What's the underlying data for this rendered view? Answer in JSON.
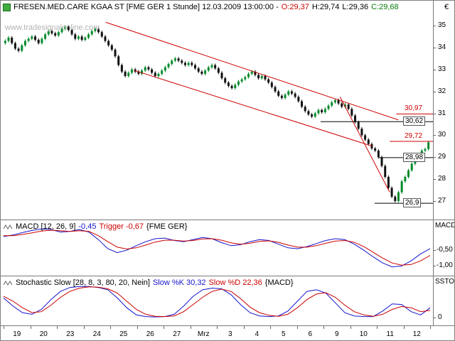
{
  "header": {
    "title_prefix": "FRESEN.MED.CARE KGAA ST [FME GER  1 Stunde] 12.03.2009 13:00:00 -",
    "open": "O:29,37",
    "high": "H:29,74",
    "low": "L:29,36",
    "close": "C:29,68"
  },
  "watermark": "www.tradesignalonline.com",
  "macd_header": {
    "name": "MACD [12, 26, 9]",
    "value": "-0,45",
    "trigger": "Trigger -0,67",
    "scope": "{FME GER}"
  },
  "ssto_header": {
    "name": "Stochastic Slow [28, 8, 3, 80, 20, Nein]",
    "k": "Slow %K 30,32",
    "d": "Slow %D 22,36",
    "scope": "{MACD}"
  },
  "axes": {
    "price": {
      "title": "€",
      "ticks": [
        "35",
        "34",
        "33",
        "32",
        "31",
        "30",
        "29",
        "28",
        "27"
      ],
      "tick_values": [
        35,
        34,
        33,
        32,
        31,
        30,
        29,
        28,
        27
      ]
    },
    "macd": {
      "title": "MACD",
      "ticks": [
        "-0,50",
        "-1,00"
      ],
      "tick_values": [
        -0.5,
        -1.0
      ]
    },
    "ssto": {
      "title": "SSTO",
      "ticks": [
        "0"
      ],
      "tick_values": [
        0
      ]
    }
  },
  "chart_data": [
    {
      "type": "candlestick",
      "symbol": "FRESEN.MED.CARE KGAA ST",
      "feed": "FME GER",
      "interval": "1 Stunde",
      "last_update": "12.03.2009 13:00:00",
      "last_bar": {
        "open": 29.37,
        "high": 29.74,
        "low": 29.36,
        "close": 29.68
      },
      "ylim": [
        26.4,
        35.3
      ],
      "yticks": [
        35,
        34,
        33,
        32,
        31,
        30,
        29,
        28,
        27
      ],
      "x_labels": [
        "19",
        "20",
        "23",
        "24",
        "25",
        "26",
        "27",
        "Mrz",
        "3",
        "4",
        "5",
        "6",
        "9",
        "10",
        "11",
        "12"
      ],
      "bars_per_label": 8,
      "first_open": 34.2,
      "wick_pad": 0.07,
      "up_color": "#068a2c",
      "down_color": "#111111",
      "trend_color": "#cc0000",
      "closes": [
        34.3,
        34.45,
        34.2,
        33.95,
        33.85,
        34.1,
        34.3,
        34.4,
        34.5,
        34.35,
        34.2,
        34.4,
        34.6,
        34.75,
        34.65,
        34.55,
        34.7,
        34.85,
        34.95,
        34.8,
        34.6,
        34.4,
        34.5,
        34.35,
        34.45,
        34.6,
        34.75,
        34.85,
        34.7,
        34.5,
        34.3,
        34.1,
        33.9,
        33.6,
        33.2,
        32.9,
        32.7,
        32.85,
        33.0,
        32.9,
        32.8,
        32.95,
        33.1,
        33.0,
        32.85,
        32.7,
        32.8,
        32.95,
        33.1,
        33.25,
        33.4,
        33.5,
        33.4,
        33.3,
        33.2,
        33.3,
        33.2,
        33.05,
        32.9,
        32.8,
        32.95,
        33.1,
        33.2,
        33.05,
        32.85,
        32.6,
        32.4,
        32.25,
        32.15,
        32.3,
        32.45,
        32.55,
        32.65,
        32.8,
        32.9,
        32.75,
        32.6,
        32.7,
        32.55,
        32.4,
        32.2,
        32.0,
        31.8,
        31.7,
        31.85,
        32.0,
        31.9,
        31.75,
        31.55,
        31.3,
        31.1,
        30.95,
        30.85,
        31.0,
        31.15,
        31.05,
        31.2,
        31.35,
        31.5,
        31.6,
        31.45,
        31.3,
        31.4,
        31.2,
        30.9,
        30.6,
        30.3,
        30.0,
        29.8,
        29.6,
        29.4,
        29.3,
        29.0,
        28.6,
        28.1,
        27.6,
        27.2,
        27.0,
        27.4,
        27.9,
        28.1,
        28.4,
        28.7,
        28.98,
        29.1,
        29.3,
        29.37,
        29.68
      ],
      "trendlines": [
        {
          "x1": 0.243,
          "p1": 35.15,
          "x2": 0.92,
          "p2": 30.7
        },
        {
          "x1": 0.31,
          "p1": 32.95,
          "x2": 0.86,
          "p2": 29.5
        },
        {
          "x1": 0.785,
          "p1": 31.75,
          "x2": 0.9,
          "p2": 27.4
        }
      ],
      "levels": [
        {
          "price": 30.97,
          "label": "30,97",
          "color": "#cc0000",
          "from": 0.915,
          "boxed": false
        },
        {
          "price": 30.62,
          "label": "30,62",
          "color": "#000000",
          "from": 0.74,
          "boxed": true
        },
        {
          "price": 29.72,
          "label": "29,72",
          "color": "#cc0000",
          "from": 0.9,
          "boxed": false
        },
        {
          "price": 28.98,
          "label": "28,98",
          "color": "#000000",
          "from": 0.875,
          "boxed": true
        },
        {
          "price": 26.9,
          "label": "26,9",
          "color": "#000000",
          "from": 0.865,
          "boxed": true
        }
      ]
    },
    {
      "type": "line",
      "panel": "macd",
      "title": "MACD [12, 26, 9]",
      "ylim": [
        -1.15,
        0.3
      ],
      "yticks": [
        -0.5,
        -1.0
      ],
      "last": {
        "macd": -0.45,
        "trigger": -0.67
      },
      "series": [
        {
          "name": "MACD",
          "color": "#1414cc",
          "values": [
            -0.05,
            0.0,
            0.08,
            0.15,
            0.2,
            0.18,
            0.1,
            0.12,
            0.18,
            0.1,
            -0.15,
            -0.45,
            -0.58,
            -0.5,
            -0.35,
            -0.22,
            -0.12,
            -0.1,
            -0.18,
            -0.22,
            -0.15,
            -0.08,
            -0.12,
            -0.25,
            -0.35,
            -0.32,
            -0.22,
            -0.15,
            -0.18,
            -0.3,
            -0.42,
            -0.45,
            -0.38,
            -0.28,
            -0.18,
            -0.12,
            -0.15,
            -0.3,
            -0.5,
            -0.72,
            -0.92,
            -1.05,
            -1.02,
            -0.85,
            -0.62,
            -0.45
          ]
        },
        {
          "name": "Trigger",
          "color": "#cc0000",
          "values": [
            -0.02,
            -0.02,
            0.02,
            0.07,
            0.13,
            0.16,
            0.14,
            0.12,
            0.14,
            0.12,
            -0.02,
            -0.22,
            -0.4,
            -0.46,
            -0.42,
            -0.33,
            -0.23,
            -0.17,
            -0.17,
            -0.2,
            -0.18,
            -0.13,
            -0.12,
            -0.17,
            -0.26,
            -0.3,
            -0.27,
            -0.21,
            -0.19,
            -0.24,
            -0.33,
            -0.4,
            -0.4,
            -0.35,
            -0.27,
            -0.2,
            -0.18,
            -0.24,
            -0.38,
            -0.57,
            -0.76,
            -0.92,
            -0.99,
            -0.97,
            -0.85,
            -0.67
          ]
        }
      ]
    },
    {
      "type": "line",
      "panel": "stochastic",
      "title": "Stochastic Slow [28, 8, 3, 80, 20, Nein]",
      "ylim": [
        0,
        100
      ],
      "yticks": [
        0
      ],
      "last": {
        "slow_k": 30.32,
        "slow_d": 22.36
      },
      "series": [
        {
          "name": "Slow %K",
          "color": "#1414cc",
          "values": [
            60,
            35,
            15,
            10,
            25,
            55,
            80,
            92,
            95,
            95,
            92,
            85,
            60,
            30,
            8,
            3,
            2,
            3,
            10,
            35,
            65,
            85,
            90,
            88,
            70,
            40,
            15,
            5,
            3,
            5,
            20,
            50,
            80,
            85,
            75,
            45,
            15,
            5,
            3,
            3,
            20,
            42,
            40,
            18,
            8,
            30
          ]
        },
        {
          "name": "Slow %D",
          "color": "#cc0000",
          "values": [
            65,
            50,
            30,
            15,
            18,
            38,
            62,
            80,
            90,
            94,
            93,
            88,
            75,
            50,
            25,
            10,
            4,
            3,
            5,
            18,
            40,
            62,
            80,
            87,
            80,
            58,
            32,
            15,
            7,
            4,
            10,
            30,
            55,
            72,
            76,
            62,
            38,
            18,
            8,
            4,
            10,
            25,
            34,
            30,
            18,
            22
          ]
        }
      ]
    }
  ]
}
